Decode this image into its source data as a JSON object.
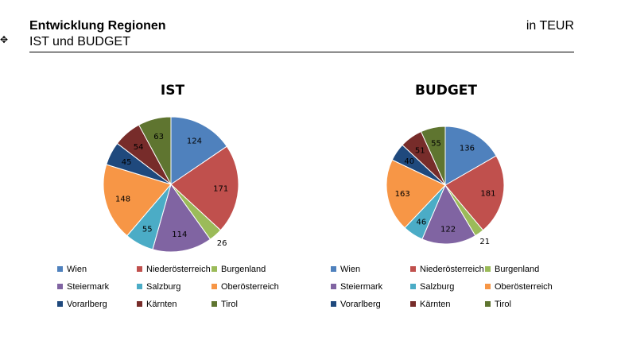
{
  "header": {
    "title": "Entwicklung Regionen",
    "subtitle": "IST und BUDGET",
    "unit": "in TEUR",
    "marker": "✥"
  },
  "colors": {
    "Wien": "#4f81bd",
    "Niederösterreich": "#c0504d",
    "Burgenland": "#9bbb59",
    "Steiermark": "#8064a2",
    "Salzburg": "#4bacc6",
    "Oberösterreich": "#f79646",
    "Vorarlberg": "#1f497d",
    "Kärnten": "#772c2a",
    "Tirol": "#5f7530"
  },
  "chart_data": [
    {
      "type": "pie",
      "title": "IST",
      "categories": [
        "Wien",
        "Niederösterreich",
        "Burgenland",
        "Steiermark",
        "Salzburg",
        "Oberösterreich",
        "Vorarlberg",
        "Kärnten",
        "Tirol"
      ],
      "values": [
        124,
        171,
        26,
        114,
        55,
        148,
        45,
        54,
        63
      ],
      "legend": "bottom"
    },
    {
      "type": "pie",
      "title": "BUDGET",
      "categories": [
        "Wien",
        "Niederösterreich",
        "Burgenland",
        "Steiermark",
        "Salzburg",
        "Oberösterreich",
        "Vorarlberg",
        "Kärnten",
        "Tirol"
      ],
      "values": [
        136,
        181,
        21,
        122,
        46,
        163,
        40,
        51,
        55
      ],
      "legend": "bottom"
    }
  ]
}
